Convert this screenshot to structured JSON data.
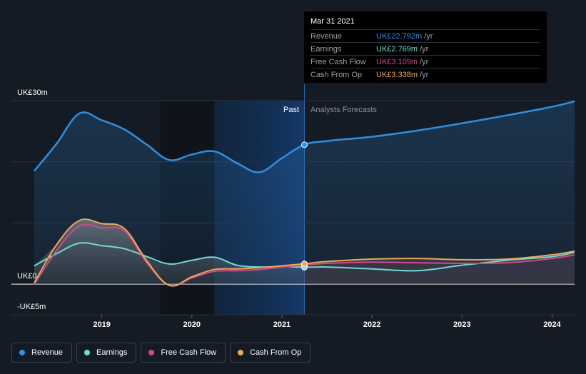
{
  "colors": {
    "revenue": "#2f8fe0",
    "earnings": "#6fdccd",
    "free_cash_flow": "#d04a86",
    "cash_from_op": "#e8a95a"
  },
  "tooltip": {
    "date": "Mar 31 2021",
    "rows": [
      {
        "name": "Revenue",
        "value": "UK£22.792m",
        "unit": "/yr"
      },
      {
        "name": "Earnings",
        "value": "UK£2.769m",
        "unit": "/yr"
      },
      {
        "name": "Free Cash Flow",
        "value": "UK£3.109m",
        "unit": "/yr"
      },
      {
        "name": "Cash From Op",
        "value": "UK£3.338m",
        "unit": "/yr"
      }
    ]
  },
  "legend": [
    {
      "label": "Revenue",
      "icon": "revenue-dot-icon"
    },
    {
      "label": "Earnings",
      "icon": "earnings-dot-icon"
    },
    {
      "label": "Free Cash Flow",
      "icon": "free-cash-flow-dot-icon"
    },
    {
      "label": "Cash From Op",
      "icon": "cash-from-op-dot-icon"
    }
  ],
  "chart_data": {
    "type": "line",
    "title": "",
    "xlabel": "",
    "ylabel": "",
    "y_unit_labels": [
      "UK£30m",
      "UK£0",
      "-UK£5m"
    ],
    "ylim": [
      -5,
      30
    ],
    "xlim": [
      2018.25,
      2024.25
    ],
    "x_ticks": [
      {
        "label": "2019",
        "value": 2019
      },
      {
        "label": "2020",
        "value": 2020
      },
      {
        "label": "2021",
        "value": 2021
      },
      {
        "label": "2022",
        "value": 2022
      },
      {
        "label": "2023",
        "value": 2023
      },
      {
        "label": "2024",
        "value": 2024
      }
    ],
    "past_label": "Past",
    "forecast_label": "Analysts Forecasts",
    "past_end": 2021.25,
    "highlight_start": 2020.25,
    "series": [
      {
        "name": "Revenue",
        "key": "revenue",
        "x": [
          2018.25,
          2018.5,
          2018.75,
          2019.0,
          2019.25,
          2019.5,
          2019.75,
          2020.0,
          2020.25,
          2020.5,
          2020.75,
          2021.0,
          2021.25,
          2021.5,
          2022.0,
          2022.5,
          2023.0,
          2023.5,
          2024.0,
          2024.25
        ],
        "values": [
          18.5,
          23.0,
          27.9,
          26.8,
          25.3,
          22.8,
          20.3,
          21.2,
          21.7,
          19.8,
          18.3,
          20.6,
          22.792,
          23.4,
          24.1,
          25.1,
          26.3,
          27.6,
          29.0,
          29.9
        ]
      },
      {
        "name": "Earnings",
        "key": "earnings",
        "x": [
          2018.25,
          2018.5,
          2018.75,
          2019.0,
          2019.25,
          2019.5,
          2019.75,
          2020.0,
          2020.25,
          2020.5,
          2020.75,
          2021.0,
          2021.25,
          2021.5,
          2022.0,
          2022.5,
          2023.0,
          2023.5,
          2024.0,
          2024.25
        ],
        "values": [
          3.0,
          5.0,
          6.7,
          6.3,
          5.8,
          4.5,
          3.3,
          3.9,
          4.4,
          3.1,
          2.8,
          2.9,
          2.769,
          2.8,
          2.5,
          2.2,
          3.1,
          3.9,
          4.5,
          5.2
        ]
      },
      {
        "name": "Free Cash Flow",
        "key": "free_cash_flow",
        "x": [
          2018.25,
          2018.5,
          2018.75,
          2019.0,
          2019.25,
          2019.5,
          2019.75,
          2020.0,
          2020.25,
          2020.5,
          2020.75,
          2021.0,
          2021.25,
          2021.5,
          2022.0,
          2022.5,
          2023.0,
          2023.5,
          2024.0,
          2024.25
        ],
        "values": [
          0.0,
          5.5,
          9.5,
          9.2,
          8.7,
          3.5,
          -0.2,
          1.0,
          2.1,
          2.2,
          2.4,
          2.8,
          3.109,
          3.4,
          3.6,
          3.5,
          3.4,
          3.5,
          4.2,
          4.8
        ]
      },
      {
        "name": "Cash From Op",
        "key": "cash_from_op",
        "x": [
          2018.25,
          2018.5,
          2018.75,
          2019.0,
          2019.25,
          2019.5,
          2019.75,
          2020.0,
          2020.25,
          2020.5,
          2020.75,
          2021.0,
          2021.25,
          2021.5,
          2022.0,
          2022.5,
          2023.0,
          2023.5,
          2024.0,
          2024.25
        ],
        "values": [
          0.2,
          6.5,
          10.4,
          9.9,
          9.1,
          3.8,
          -0.2,
          1.2,
          2.4,
          2.5,
          2.7,
          3.0,
          3.338,
          3.7,
          4.1,
          4.2,
          4.0,
          4.1,
          4.8,
          5.4
        ]
      }
    ]
  }
}
